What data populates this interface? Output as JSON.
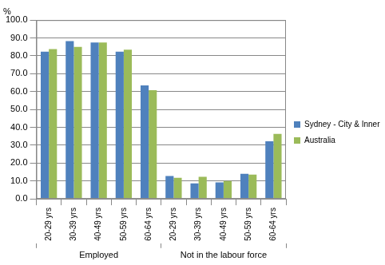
{
  "chart_data": {
    "type": "bar",
    "y_label": "%",
    "categories": [
      "20-29 yrs",
      "30-39 yrs",
      "40-49 yrs",
      "50-59 yrs",
      "60-64 yrs",
      "20-29 yrs",
      "30-39 yrs",
      "40-49 yrs",
      "50-59 yrs",
      "60-64 yrs"
    ],
    "groups": [
      "Employed",
      "Not in the labour force"
    ],
    "series": [
      {
        "name": "Sydney - City & Inner South",
        "color": "#4f81bd",
        "values": [
          82.3,
          88.2,
          87.5,
          82.3,
          63.5,
          12.8,
          8.7,
          9.2,
          14.0,
          32.2
        ]
      },
      {
        "name": "Australia",
        "color": "#9bbb59",
        "values": [
          83.8,
          85.0,
          87.5,
          83.4,
          60.8,
          11.8,
          12.3,
          10.0,
          13.6,
          36.3
        ]
      }
    ],
    "ylim": [
      0,
      100
    ],
    "yticks": [
      {
        "value": 0,
        "label": "0.0"
      },
      {
        "value": 10,
        "label": "10.0"
      },
      {
        "value": 20,
        "label": "20.0"
      },
      {
        "value": 30,
        "label": "30.0"
      },
      {
        "value": 40,
        "label": "40.0"
      },
      {
        "value": 50,
        "label": "50.0"
      },
      {
        "value": 60,
        "label": "60.0"
      },
      {
        "value": 70,
        "label": "70.0"
      },
      {
        "value": 80,
        "label": "80.0"
      },
      {
        "value": 90,
        "label": "90.0"
      },
      {
        "value": 100,
        "label": "100.0"
      }
    ],
    "grid": true,
    "legend": "right"
  }
}
